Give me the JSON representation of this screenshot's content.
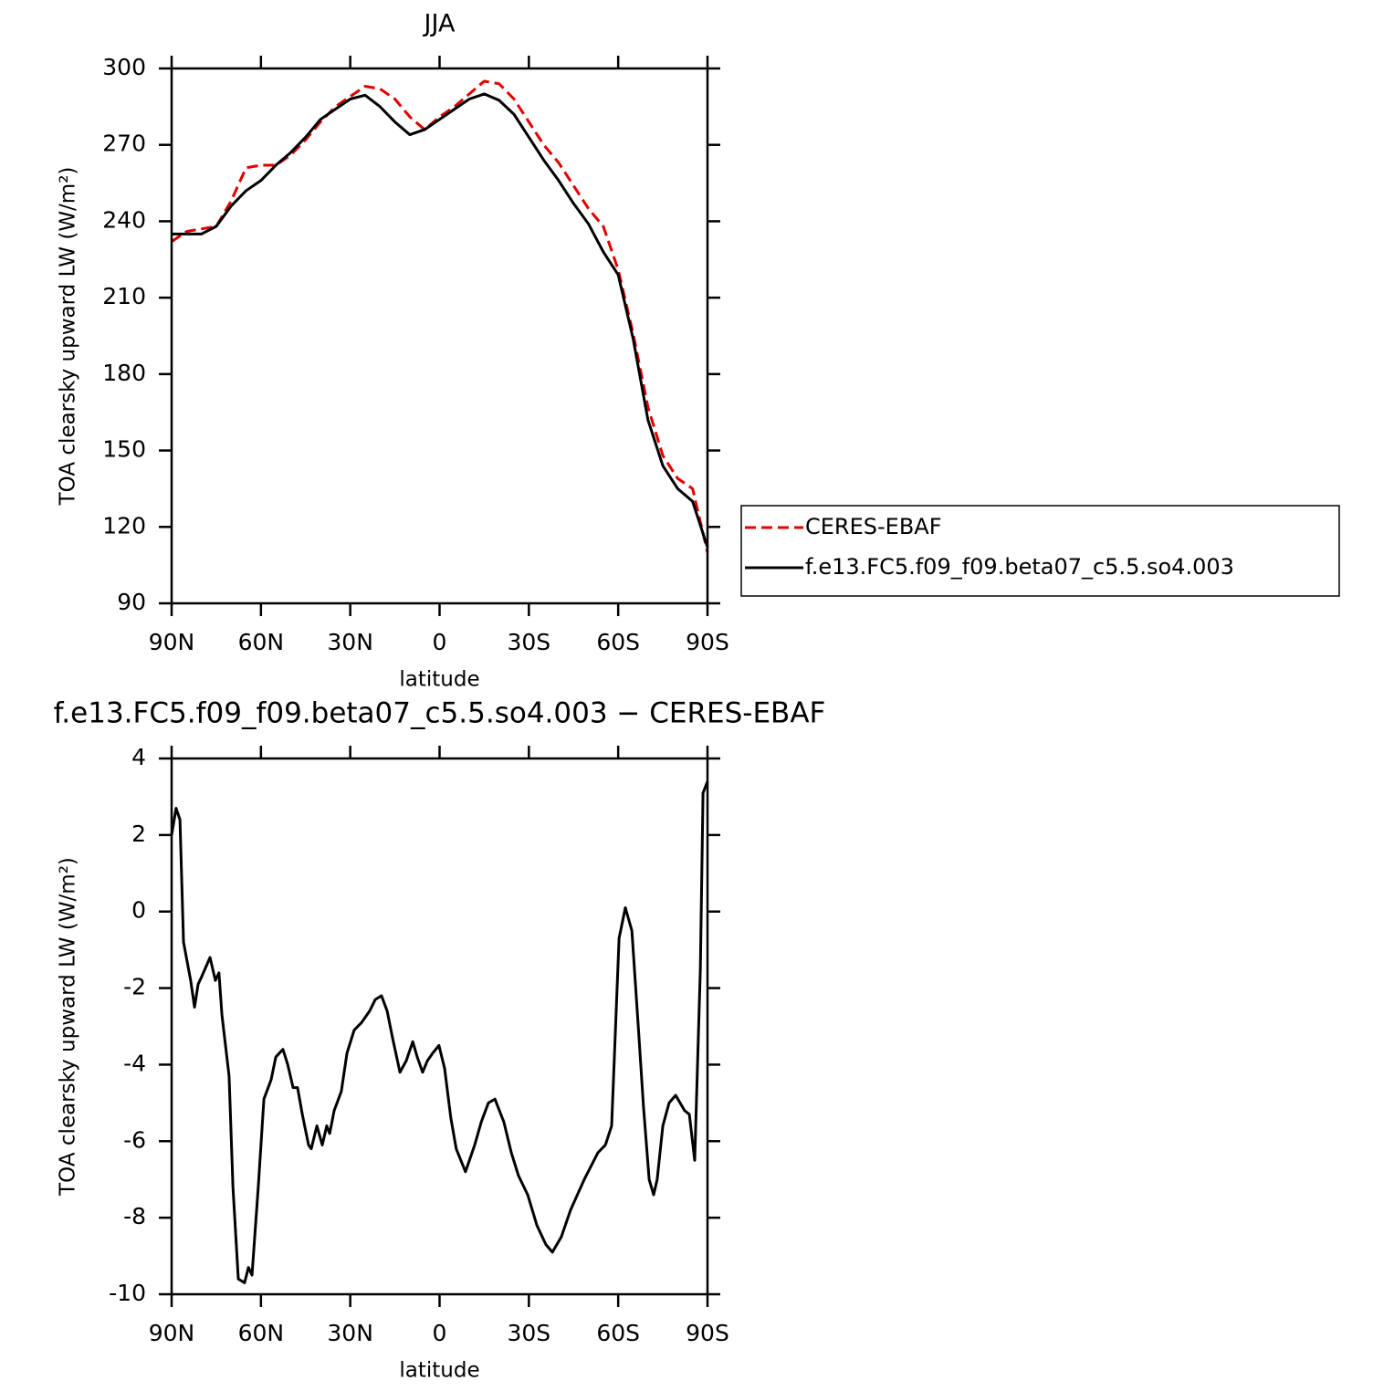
{
  "chart_data": [
    {
      "type": "line",
      "title": "JJA",
      "x_label": "latitude",
      "y_label": "TOA clearsky upward LW (W/m²)",
      "x": [
        90,
        85,
        80,
        75,
        70,
        65,
        60,
        55,
        50,
        45,
        40,
        35,
        30,
        25,
        20,
        15,
        10,
        5,
        0,
        -5,
        -10,
        -15,
        -20,
        -25,
        -30,
        -35,
        -40,
        -45,
        -50,
        -55,
        -60,
        -65,
        -70,
        -75,
        -80,
        -85,
        -90
      ],
      "series": [
        {
          "name": "CERES-EBAF",
          "color": "#e00000",
          "style": "dashed",
          "values": [
            232,
            236,
            237,
            238,
            248,
            261,
            262,
            262,
            266,
            272,
            279,
            285,
            289,
            293,
            292,
            288,
            281,
            276,
            281,
            285,
            290,
            295,
            294,
            288,
            279,
            270,
            263,
            254,
            245,
            238,
            221,
            196,
            167,
            148,
            139,
            135,
            110
          ]
        },
        {
          "name": "f.e13.FC5.f09_f09.beta07_c5.5.so4.003",
          "color": "#000000",
          "style": "solid",
          "values": [
            235,
            235,
            235,
            238,
            246,
            252,
            256,
            262,
            267,
            273,
            280,
            284,
            288,
            289.5,
            285,
            279,
            274,
            276,
            280,
            284,
            288,
            290,
            287.5,
            282,
            273,
            264,
            256,
            247,
            239,
            228,
            219,
            194,
            162,
            144,
            135,
            130,
            112
          ]
        }
      ],
      "xlim": [
        90,
        -90
      ],
      "xticks": [
        {
          "value": 90,
          "label": "90N"
        },
        {
          "value": 60,
          "label": "60N"
        },
        {
          "value": 30,
          "label": "30N"
        },
        0,
        {
          "value": -30,
          "label": "30S"
        },
        {
          "value": -60,
          "label": "60S"
        },
        {
          "value": -90,
          "label": "90S"
        }
      ],
      "ylim": [
        90,
        300
      ],
      "yticks": [
        90,
        120,
        150,
        180,
        210,
        240,
        270,
        300
      ],
      "legend": "right"
    },
    {
      "type": "line",
      "title": "f.e13.FC5.f09_f09.beta07_c5.5.so4.003 − CERES-EBAF",
      "x_label": "latitude",
      "y_label": "TOA clearsky upward LW (W/m²)",
      "x": [
        90,
        88.5,
        87.2,
        86,
        84.8,
        83.6,
        82.3,
        81.1,
        79.9,
        77.1,
        75.3,
        74.1,
        73.1,
        70.7,
        69.4,
        67.6,
        65.5,
        64.2,
        63,
        60.9,
        59,
        56.6,
        55,
        52.6,
        51,
        49.2,
        47.7,
        46.1,
        44,
        43.1,
        41.2,
        39.4,
        37.9,
        36.9,
        35.4,
        33,
        31.1,
        28.7,
        26.2,
        23.5,
        21.6,
        19.5,
        17.6,
        15.8,
        13.3,
        11.2,
        9,
        7.5,
        5.7,
        4.1,
        2.3,
        0.2,
        -1.7,
        -3.8,
        -5.6,
        -8.7,
        -11.8,
        -14,
        -16.4,
        -18.6,
        -21.6,
        -24.1,
        -26.5,
        -29.6,
        -32.7,
        -35.7,
        -37.9,
        -40.9,
        -44,
        -48.6,
        -53.2,
        -55.7,
        -57.8,
        -60.3,
        -62.4,
        -64.6,
        -67,
        -68.5,
        -70.4,
        -71.9,
        -73.1,
        -75,
        -77.1,
        -79.3,
        -82.3,
        -83.9,
        -85.7,
        -87.6,
        -88.5,
        -90
      ],
      "series": [
        {
          "color": "#000000",
          "style": "solid",
          "values": [
            2.0,
            2.7,
            2.4,
            -0.8,
            -1.3,
            -1.8,
            -2.5,
            -1.9,
            -1.7,
            -1.2,
            -1.8,
            -1.6,
            -2.7,
            -4.3,
            -7.2,
            -9.6,
            -9.7,
            -9.3,
            -9.5,
            -7.2,
            -4.9,
            -4.4,
            -3.8,
            -3.6,
            -4.0,
            -4.6,
            -4.6,
            -5.3,
            -6.1,
            -6.2,
            -5.6,
            -6.1,
            -5.6,
            -5.8,
            -5.2,
            -4.7,
            -3.7,
            -3.1,
            -2.9,
            -2.6,
            -2.3,
            -2.2,
            -2.6,
            -3.3,
            -4.2,
            -3.9,
            -3.4,
            -3.8,
            -4.2,
            -3.9,
            -3.7,
            -3.5,
            -4.1,
            -5.4,
            -6.2,
            -6.8,
            -6.1,
            -5.5,
            -5.0,
            -4.9,
            -5.5,
            -6.3,
            -6.9,
            -7.4,
            -8.2,
            -8.7,
            -8.9,
            -8.5,
            -7.8,
            -7.0,
            -6.3,
            -6.1,
            -5.6,
            -0.7,
            0.1,
            -0.5,
            -3.3,
            -5.1,
            -7.0,
            -7.4,
            -7.0,
            -5.6,
            -5.0,
            -4.8,
            -5.2,
            -5.3,
            -6.5,
            -1.5,
            3.1,
            3.4
          ]
        }
      ],
      "xlim": [
        90,
        -90
      ],
      "xticks": [
        {
          "value": 90,
          "label": "90N"
        },
        {
          "value": 60,
          "label": "60N"
        },
        {
          "value": 30,
          "label": "30N"
        },
        0,
        {
          "value": -30,
          "label": "30S"
        },
        {
          "value": -60,
          "label": "60S"
        },
        {
          "value": -90,
          "label": "90S"
        }
      ],
      "ylim": [
        -10,
        4
      ],
      "yticks": [
        -10,
        -8,
        -6,
        -4,
        -2,
        0,
        2,
        4
      ]
    }
  ]
}
